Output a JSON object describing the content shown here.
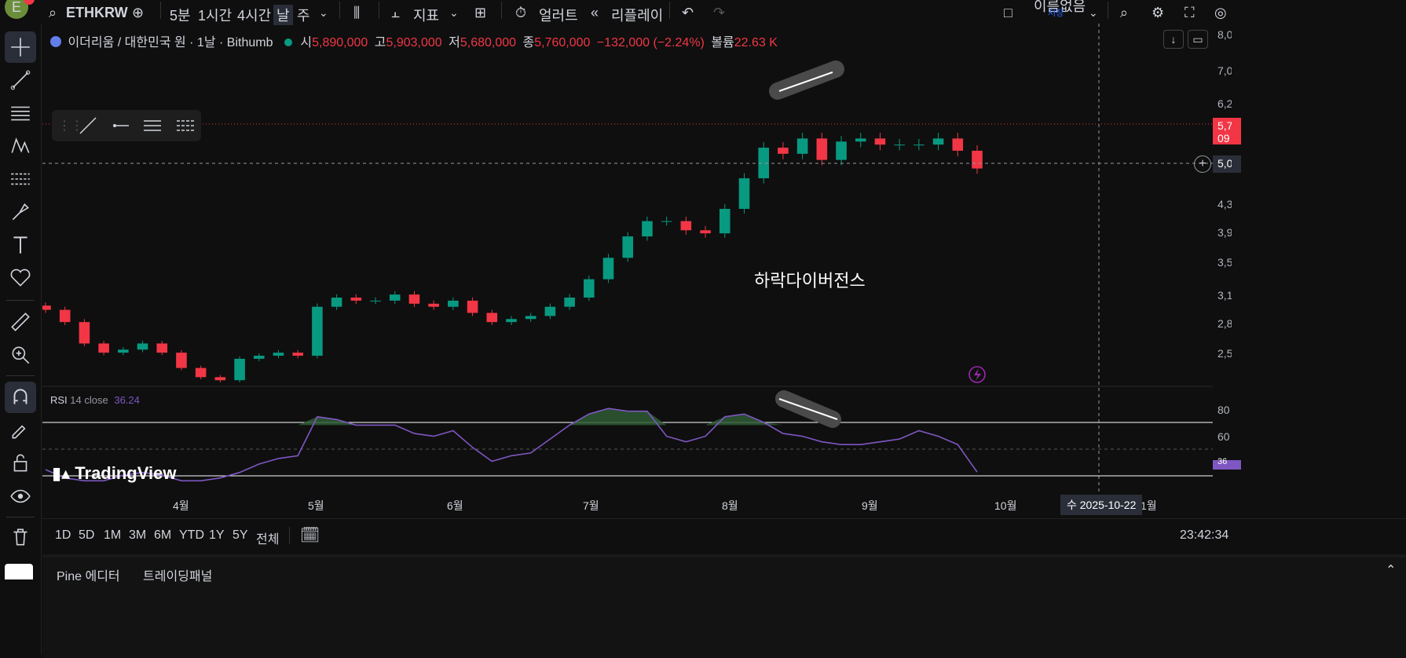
{
  "topbar": {
    "avatar": "E",
    "symbol": "ETHKRW",
    "intervals": [
      "5분",
      "1시간",
      "4시간",
      "날",
      "주"
    ],
    "indicators": "지표",
    "alert": "얼러트",
    "replay": "리플레이",
    "layout_name": "이름없음",
    "save_label": "저장"
  },
  "legend": {
    "title": "이더리움 / 대한민국 원 · 1날 · Bithumb",
    "open_label": "시",
    "open": "5,890,000",
    "high_label": "고",
    "high": "5,903,000",
    "low_label": "저",
    "low": "5,680,000",
    "close_label": "종",
    "close": "5,760,000",
    "change": "−132,000 (−2.24%)",
    "volume_label": "볼륨",
    "volume": "22.63 K"
  },
  "annotation": "하락다이버전스",
  "rsi": {
    "label": "RSI",
    "params": "14 close",
    "value": "36.24"
  },
  "watermark": "TradingView",
  "price_axis": [
    "8,0",
    "7,0",
    "6,2",
    "5,7",
    "09",
    "5,0",
    "4,3",
    "3,9",
    "3,5",
    "3,1",
    "2,8",
    "2,5"
  ],
  "rsi_axis": [
    "80",
    "60",
    "36"
  ],
  "time_axis": [
    "4월",
    "5월",
    "6월",
    "7월",
    "8월",
    "9월",
    "10월",
    "1월"
  ],
  "crosshair_date": "수 2025-10-22",
  "ranges": [
    "1D",
    "5D",
    "1M",
    "3M",
    "6M",
    "YTD",
    "1Y",
    "5Y",
    "전체"
  ],
  "clock": "23:42:34",
  "footer_tabs": [
    "Pine 에디터",
    "트레이딩패널"
  ],
  "colors": {
    "up": "#089981",
    "down": "#f23645",
    "rsi": "#7e57c2",
    "bg": "#0f0f0f"
  },
  "chart_data": {
    "type": "candlestick",
    "y_unit": "KRW",
    "months_shown": [
      "4월",
      "5월",
      "6월",
      "7월",
      "8월",
      "9월",
      "10월"
    ],
    "close_series_approx": [
      3450000,
      3250000,
      2900000,
      2750000,
      2800000,
      2900000,
      2750000,
      2500000,
      2350000,
      2300000,
      2650000,
      2700000,
      2750000,
      2700000,
      3500000,
      3650000,
      3600000,
      3600000,
      3700000,
      3550000,
      3500000,
      3600000,
      3400000,
      3250000,
      3300000,
      3350000,
      3500000,
      3650000,
      3950000,
      4300000,
      4650000,
      4900000,
      4900000,
      4750000,
      4700000,
      5100000,
      5600000,
      6100000,
      6000000,
      6250000,
      5900000,
      6200000,
      6250000,
      6150000,
      6150000,
      6150000,
      6250000,
      6050000,
      5760000
    ],
    "last_price": 5760000,
    "rsi_series_approx": [
      38,
      32,
      30,
      30,
      34,
      36,
      34,
      30,
      30,
      32,
      36,
      42,
      46,
      48,
      76,
      74,
      70,
      70,
      70,
      64,
      62,
      66,
      54,
      44,
      48,
      50,
      60,
      70,
      78,
      82,
      80,
      80,
      62,
      58,
      62,
      76,
      78,
      72,
      64,
      62,
      58,
      56,
      56,
      58,
      60,
      66,
      62,
      56,
      36.24
    ],
    "rsi_levels": [
      70,
      30
    ]
  }
}
